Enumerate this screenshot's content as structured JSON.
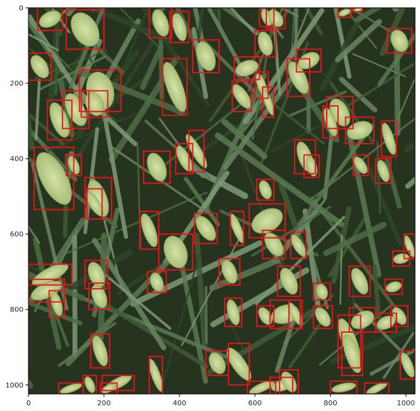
{
  "chart_data": {
    "type": "image-detections",
    "title": "",
    "xlabel": "",
    "ylabel": "",
    "xlim": [
      0,
      1024
    ],
    "ylim": [
      1024,
      0
    ],
    "x_ticks": [
      0,
      200,
      400,
      600,
      800,
      1000
    ],
    "y_ticks": [
      0,
      200,
      400,
      600,
      800,
      1000
    ],
    "box_color": "#e8141a",
    "image_description": "Overhead photo of a wheat field with green leaves and pale wheat heads",
    "boxes": [
      [
        24,
        0,
        90,
        60
      ],
      [
        100,
        5,
        200,
        110
      ],
      [
        320,
        0,
        380,
        80
      ],
      [
        375,
        10,
        425,
        92
      ],
      [
        612,
        0,
        650,
        50
      ],
      [
        630,
        0,
        680,
        55
      ],
      [
        820,
        0,
        855,
        25
      ],
      [
        860,
        0,
        885,
        10
      ],
      [
        950,
        55,
        1015,
        120
      ],
      [
        0,
        120,
        60,
        192
      ],
      [
        435,
        85,
        505,
        172
      ],
      [
        600,
        60,
        655,
        130
      ],
      [
        545,
        130,
        612,
        190
      ],
      [
        710,
        110,
        775,
        170
      ],
      [
        685,
        135,
        745,
        235
      ],
      [
        355,
        135,
        420,
        285
      ],
      [
        135,
        165,
        245,
        275
      ],
      [
        140,
        220,
        210,
        290
      ],
      [
        90,
        220,
        160,
        320
      ],
      [
        50,
        245,
        115,
        350
      ],
      [
        600,
        170,
        635,
        240
      ],
      [
        540,
        195,
        590,
        275
      ],
      [
        620,
        210,
        650,
        290
      ],
      [
        790,
        235,
        860,
        320
      ],
      [
        780,
        260,
        820,
        345
      ],
      [
        840,
        290,
        915,
        360
      ],
      [
        935,
        300,
        975,
        395
      ],
      [
        425,
        325,
        465,
        435
      ],
      [
        390,
        360,
        435,
        440
      ],
      [
        305,
        380,
        375,
        465
      ],
      [
        705,
        350,
        760,
        440
      ],
      [
        730,
        390,
        770,
        450
      ],
      [
        860,
        390,
        900,
        445
      ],
      [
        920,
        400,
        960,
        465
      ],
      [
        15,
        370,
        120,
        535
      ],
      [
        100,
        390,
        140,
        445
      ],
      [
        150,
        450,
        220,
        560
      ],
      [
        155,
        480,
        195,
        560
      ],
      [
        605,
        455,
        650,
        510
      ],
      [
        585,
        520,
        680,
        610
      ],
      [
        295,
        540,
        345,
        640
      ],
      [
        345,
        600,
        435,
        695
      ],
      [
        440,
        545,
        500,
        625
      ],
      [
        535,
        540,
        570,
        630
      ],
      [
        620,
        590,
        680,
        665
      ],
      [
        695,
        595,
        735,
        665
      ],
      [
        0,
        680,
        115,
        735
      ],
      [
        0,
        720,
        95,
        780
      ],
      [
        55,
        750,
        95,
        820
      ],
      [
        150,
        670,
        210,
        745
      ],
      [
        160,
        730,
        215,
        800
      ],
      [
        315,
        700,
        365,
        755
      ],
      [
        505,
        665,
        560,
        735
      ],
      [
        660,
        685,
        720,
        765
      ],
      [
        755,
        730,
        800,
        775
      ],
      [
        850,
        685,
        905,
        765
      ],
      [
        945,
        720,
        990,
        760
      ],
      [
        965,
        645,
        1010,
        685
      ],
      [
        995,
        600,
        1024,
        665
      ],
      [
        520,
        770,
        565,
        845
      ],
      [
        605,
        790,
        650,
        845
      ],
      [
        640,
        775,
        720,
        850
      ],
      [
        690,
        775,
        725,
        850
      ],
      [
        755,
        790,
        805,
        850
      ],
      [
        820,
        815,
        880,
        955
      ],
      [
        830,
        860,
        885,
        975
      ],
      [
        850,
        795,
        920,
        860
      ],
      [
        920,
        810,
        975,
        860
      ],
      [
        960,
        790,
        1005,
        845
      ],
      [
        985,
        910,
        1024,
        985
      ],
      [
        165,
        865,
        215,
        955
      ],
      [
        470,
        910,
        530,
        975
      ],
      [
        530,
        890,
        585,
        1000
      ],
      [
        640,
        980,
        700,
        1024
      ],
      [
        665,
        960,
        715,
        1024
      ],
      [
        320,
        925,
        355,
        1024
      ],
      [
        145,
        975,
        180,
        1024
      ],
      [
        195,
        975,
        280,
        1015
      ],
      [
        190,
        995,
        235,
        1024
      ],
      [
        80,
        995,
        145,
        1024
      ],
      [
        580,
        990,
        655,
        1024
      ],
      [
        800,
        990,
        870,
        1024
      ],
      [
        890,
        995,
        955,
        1024
      ]
    ]
  }
}
